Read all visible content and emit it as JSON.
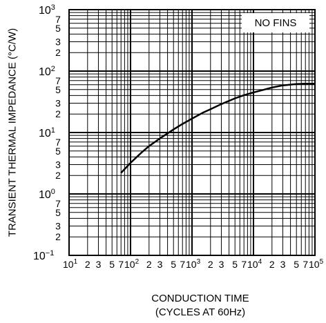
{
  "chart_data": {
    "type": "line",
    "title": "",
    "xlabel": [
      "CONDUCTION TIME",
      "(CYCLES AT 60Hz)"
    ],
    "ylabel": "TRANSIENT THERMAL IMPEDANCE  (°C/W)",
    "x_scale": "log",
    "y_scale": "log",
    "xlim": [
      10,
      100000
    ],
    "ylim": [
      0.1,
      1000
    ],
    "grid": true,
    "annotation": "NO FINS",
    "x_ticks": [
      {
        "decade": 1,
        "labels": [
          "2",
          "3",
          "5",
          "7"
        ]
      },
      {
        "decade": 2,
        "labels": [
          "2",
          "3",
          "5",
          "7"
        ]
      },
      {
        "decade": 3,
        "labels": [
          "2",
          "3",
          "5",
          "7"
        ]
      },
      {
        "decade": 4,
        "labels": [
          "2",
          "3",
          "5",
          "7"
        ]
      },
      {
        "decade": 5,
        "labels": []
      }
    ],
    "y_ticks": [
      {
        "decade": -1,
        "labels": [
          "2",
          "3",
          "5",
          "7"
        ]
      },
      {
        "decade": 0,
        "labels": [
          "2",
          "3",
          "5",
          "7"
        ]
      },
      {
        "decade": 1,
        "labels": [
          "2",
          "3",
          "5",
          "7"
        ]
      },
      {
        "decade": 2,
        "labels": [
          "2",
          "3",
          "5",
          "7"
        ]
      },
      {
        "decade": 3,
        "labels": []
      }
    ],
    "series": [
      {
        "x": [
          70,
          100,
          150,
          200,
          300,
          500,
          700,
          1000,
          1500,
          2000,
          3000,
          5000,
          7000,
          10000,
          15000,
          20000,
          30000,
          50000,
          70000,
          100000
        ],
        "y": [
          2.2,
          3.2,
          4.7,
          6.0,
          8.0,
          11.2,
          13.8,
          16.8,
          21.0,
          24.0,
          29.0,
          36.0,
          40.5,
          45.0,
          50.0,
          54.0,
          58.5,
          61.5,
          62.5,
          62.5
        ]
      }
    ]
  }
}
